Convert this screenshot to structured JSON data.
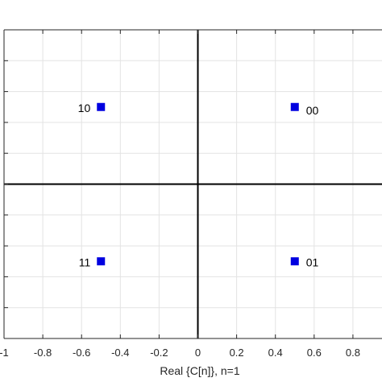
{
  "chart_data": {
    "type": "scatter",
    "xlabel": "Real {C[n]}, n=1",
    "xlim": [
      -1,
      0.95
    ],
    "ylim": [
      -1,
      1
    ],
    "x_ticks": [
      -1,
      -0.8,
      -0.6,
      -0.4,
      -0.2,
      0,
      0.2,
      0.4,
      0.6,
      0.8
    ],
    "x_tick_labels": [
      "-1",
      "-0.8",
      "-0.6",
      "-0.4",
      "-0.2",
      "0",
      "0.2",
      "0.4",
      "0.6",
      "0.8"
    ],
    "y_ticks": [
      -1,
      -0.8,
      -0.6,
      -0.4,
      -0.2,
      0,
      0.2,
      0.4,
      0.6,
      0.8,
      1
    ],
    "grid": true,
    "marker": "square",
    "marker_color": "#0000e0",
    "points": [
      {
        "x": -0.5,
        "y": 0.5,
        "label": "10"
      },
      {
        "x": 0.5,
        "y": 0.5,
        "label": "00"
      },
      {
        "x": -0.5,
        "y": -0.5,
        "label": "11"
      },
      {
        "x": 0.5,
        "y": -0.5,
        "label": "01"
      }
    ]
  }
}
